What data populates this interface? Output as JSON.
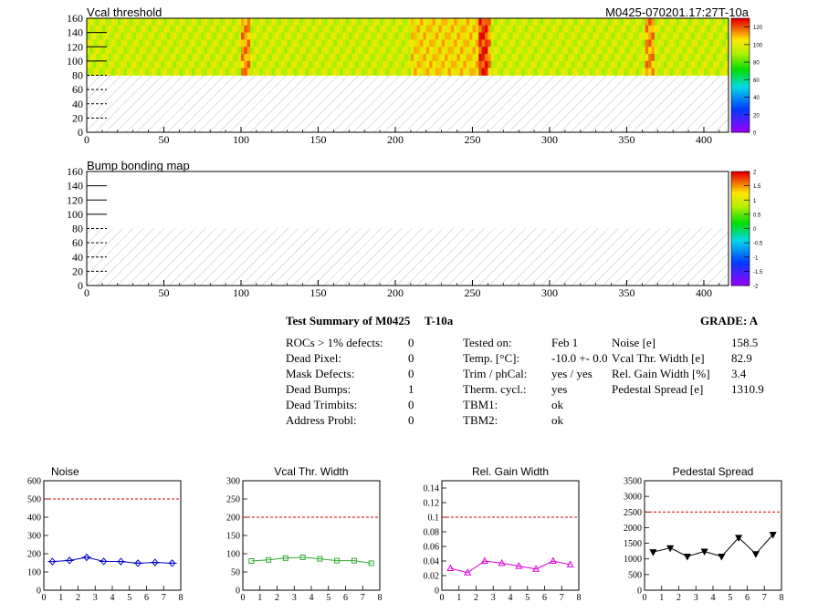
{
  "header": {
    "left_title": "Vcal threshold",
    "right_title": "M0425-070201.17:27T-10a"
  },
  "maps": [
    {
      "title": "Vcal threshold",
      "x_ticks": [
        "0",
        "50",
        "100",
        "150",
        "200",
        "250",
        "300",
        "350",
        "400"
      ],
      "y_ticks": [
        "0",
        "20",
        "40",
        "60",
        "80",
        "100",
        "120",
        "140",
        "160"
      ],
      "xlim": [
        0,
        416
      ],
      "ylim": [
        0,
        160
      ],
      "palette_ticks": [
        "0",
        "20",
        "40",
        "60",
        "80",
        "100",
        "120"
      ],
      "palette_range": [
        0,
        130
      ]
    },
    {
      "title": "Bump bonding map",
      "x_ticks": [
        "0",
        "50",
        "100",
        "150",
        "200",
        "250",
        "300",
        "350",
        "400"
      ],
      "y_ticks": [
        "0",
        "20",
        "40",
        "60",
        "80",
        "100",
        "120",
        "140",
        "160"
      ],
      "xlim": [
        0,
        416
      ],
      "ylim": [
        0,
        160
      ],
      "palette_ticks": [
        "-2",
        "-1.5",
        "-1",
        "-0.5",
        "0",
        "0.5",
        "1",
        "1.5",
        "2"
      ],
      "palette_range": [
        -2,
        2
      ]
    }
  ],
  "summary": {
    "title": "Test Summary of M0425",
    "temp_label": "T-10a",
    "grade": "GRADE:  A",
    "defects": [
      {
        "label": "ROCs > 1% defects:",
        "value": "0"
      },
      {
        "label": "Dead Pixel:",
        "value": "0"
      },
      {
        "label": "Mask Defects:",
        "value": "0"
      },
      {
        "label": "Dead Bumps:",
        "value": "1"
      },
      {
        "label": "Dead Trimbits:",
        "value": "0"
      },
      {
        "label": "Address Probl:",
        "value": "0"
      }
    ],
    "conditions": [
      {
        "label": "Tested on:",
        "value": "Feb 1"
      },
      {
        "label": "Temp. [°C]:",
        "value": "-10.0 +- 0.0"
      },
      {
        "label": "Trim / phCal:",
        "value": "yes / yes"
      },
      {
        "label": "Therm. cycl.:",
        "value": "yes"
      },
      {
        "label": "TBM1:",
        "value": "ok"
      },
      {
        "label": "TBM2:",
        "value": "ok"
      }
    ],
    "results": [
      {
        "label": "Noise [e]",
        "value": "158.5"
      },
      {
        "label": "Vcal Thr. Width [e]",
        "value": "82.9"
      },
      {
        "label": "Rel. Gain Width [%]",
        "value": "3.4"
      },
      {
        "label": "Pedestal Spread [e]",
        "value": "1310.9"
      }
    ]
  },
  "chart_data": [
    {
      "type": "scatter",
      "title": "Noise",
      "color": "#0000cc",
      "marker": "diamond",
      "x": [
        0.5,
        1.5,
        2.5,
        3.5,
        4.5,
        5.5,
        6.5,
        7.5
      ],
      "values": [
        157,
        163,
        180,
        158,
        157,
        148,
        152,
        148
      ],
      "ylim": [
        0,
        600
      ],
      "limit": 500,
      "y_ticks": [
        "0",
        "100",
        "200",
        "300",
        "400",
        "500",
        "600"
      ],
      "x_ticks": [
        "0",
        "1",
        "2",
        "3",
        "4",
        "5",
        "6",
        "7",
        "8"
      ]
    },
    {
      "type": "scatter",
      "title": "Vcal Thr. Width",
      "color": "#33aa33",
      "marker": "square",
      "x": [
        0.5,
        1.5,
        2.5,
        3.5,
        4.5,
        5.5,
        6.5,
        7.5
      ],
      "values": [
        80,
        83,
        88,
        90,
        86,
        81,
        81,
        74
      ],
      "ylim": [
        0,
        300
      ],
      "limit": 200,
      "y_ticks": [
        "0",
        "50",
        "100",
        "150",
        "200",
        "250",
        "300"
      ],
      "x_ticks": [
        "0",
        "1",
        "2",
        "3",
        "4",
        "5",
        "6",
        "7",
        "8"
      ]
    },
    {
      "type": "scatter",
      "title": "Rel. Gain Width",
      "color": "#dd00dd",
      "marker": "triangle",
      "x": [
        0.5,
        1.5,
        2.5,
        3.5,
        4.5,
        5.5,
        6.5,
        7.5
      ],
      "values": [
        0.03,
        0.024,
        0.04,
        0.037,
        0.033,
        0.029,
        0.04,
        0.035
      ],
      "ylim": [
        0,
        0.15
      ],
      "limit": 0.1,
      "y_ticks": [
        "0",
        "0.02",
        "0.04",
        "0.06",
        "0.08",
        "0.1",
        "0.12",
        "0.14"
      ],
      "x_ticks": [
        "0",
        "1",
        "2",
        "3",
        "4",
        "5",
        "6",
        "7",
        "8"
      ]
    },
    {
      "type": "scatter",
      "title": "Pedestal Spread",
      "color": "#000000",
      "marker": "triangle-down",
      "x": [
        0.5,
        1.5,
        2.5,
        3.5,
        4.5,
        5.5,
        6.5,
        7.5
      ],
      "values": [
        1220,
        1350,
        1080,
        1240,
        1080,
        1680,
        1160,
        1780
      ],
      "ylim": [
        0,
        3500
      ],
      "limit": 2500,
      "y_ticks": [
        "0",
        "500",
        "1000",
        "1500",
        "2000",
        "2500",
        "3000",
        "3500"
      ],
      "x_ticks": [
        "0",
        "1",
        "2",
        "3",
        "4",
        "5",
        "6",
        "7",
        "8"
      ]
    }
  ]
}
